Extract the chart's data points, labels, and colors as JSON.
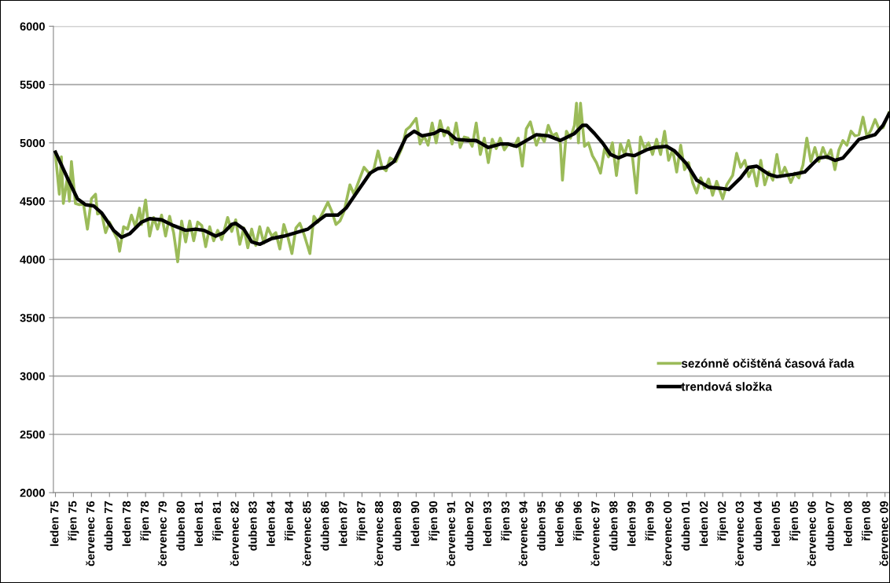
{
  "chart_data": {
    "type": "line",
    "xlim": [
      "1974-12-01",
      "2009-09-15"
    ],
    "xticks": [
      {
        "value": "1975-01",
        "label": "leden 75"
      },
      {
        "value": "1975-10",
        "label": "říjen 75"
      },
      {
        "value": "1976-07",
        "label": "červenec 76"
      },
      {
        "value": "1977-04",
        "label": "duben 77"
      },
      {
        "value": "1978-01",
        "label": "leden 78"
      },
      {
        "value": "1978-10",
        "label": "říjen 78"
      },
      {
        "value": "1979-07",
        "label": "červenec 79"
      },
      {
        "value": "1980-04",
        "label": "duben 80"
      },
      {
        "value": "1981-01",
        "label": "leden 81"
      },
      {
        "value": "1981-10",
        "label": "říjen 81"
      },
      {
        "value": "1982-07",
        "label": "červenec 82"
      },
      {
        "value": "1983-04",
        "label": "duben 83"
      },
      {
        "value": "1984-01",
        "label": "leden 84"
      },
      {
        "value": "1984-10",
        "label": "říjen 84"
      },
      {
        "value": "1985-07",
        "label": "červenec 85"
      },
      {
        "value": "1986-04",
        "label": "duben 86"
      },
      {
        "value": "1987-01",
        "label": "leden 87"
      },
      {
        "value": "1987-10",
        "label": "říjen 87"
      },
      {
        "value": "1988-07",
        "label": "červenec 88"
      },
      {
        "value": "1989-04",
        "label": "duben 89"
      },
      {
        "value": "1990-01",
        "label": "leden 90"
      },
      {
        "value": "1990-10",
        "label": "říjen 90"
      },
      {
        "value": "1991-07",
        "label": "červenec 91"
      },
      {
        "value": "1992-04",
        "label": "duben 92"
      },
      {
        "value": "1993-01",
        "label": "leden 93"
      },
      {
        "value": "1993-10",
        "label": "říjen 93"
      },
      {
        "value": "1994-07",
        "label": "červenec 94"
      },
      {
        "value": "1995-04",
        "label": "duben 95"
      },
      {
        "value": "1996-01",
        "label": "leden 96"
      },
      {
        "value": "1996-10",
        "label": "říjen 96"
      },
      {
        "value": "1997-07",
        "label": "červenec 97"
      },
      {
        "value": "1998-04",
        "label": "duben 98"
      },
      {
        "value": "1999-01",
        "label": "leden 99"
      },
      {
        "value": "1999-10",
        "label": "říjen 99"
      },
      {
        "value": "2000-07",
        "label": "červenec 00"
      },
      {
        "value": "2001-04",
        "label": "duben 01"
      },
      {
        "value": "2002-01",
        "label": "leden 02"
      },
      {
        "value": "2002-10",
        "label": "říjen 02"
      },
      {
        "value": "2003-07",
        "label": "červenec 03"
      },
      {
        "value": "2004-04",
        "label": "duben 04"
      },
      {
        "value": "2005-01",
        "label": "leden 05"
      },
      {
        "value": "2005-10",
        "label": "říjen 05"
      },
      {
        "value": "2006-07",
        "label": "červenec 06"
      },
      {
        "value": "2007-04",
        "label": "duben 07"
      },
      {
        "value": "2008-01",
        "label": "leden 08"
      },
      {
        "value": "2008-10",
        "label": "říjen 08"
      },
      {
        "value": "2009-07",
        "label": "červenec 09"
      }
    ],
    "ylim": [
      2000,
      6000
    ],
    "yticks": [
      2000,
      2500,
      3000,
      3500,
      4000,
      4500,
      5000,
      5500,
      6000
    ],
    "grid": "y",
    "legend": "right",
    "marker": "none",
    "line_style": "solid",
    "series": [
      {
        "name": "sezónně očištěná časová řada",
        "color": "#9bbb59",
        "x": [
          "1975-01",
          "1975-03",
          "1975-04",
          "1975-05",
          "1975-07",
          "1975-08",
          "1975-09",
          "1975-11",
          "1976-01",
          "1976-03",
          "1976-05",
          "1976-07",
          "1976-09",
          "1976-10",
          "1976-12",
          "1977-02",
          "1977-04",
          "1977-06",
          "1977-08",
          "1977-09",
          "1977-11",
          "1978-01",
          "1978-03",
          "1978-05",
          "1978-07",
          "1978-08",
          "1978-10",
          "1978-12",
          "1979-02",
          "1979-04",
          "1979-06",
          "1979-08",
          "1979-10",
          "1979-12",
          "1980-02",
          "1980-04",
          "1980-06",
          "1980-08",
          "1980-10",
          "1980-12",
          "1981-02",
          "1981-04",
          "1981-06",
          "1981-08",
          "1981-10",
          "1981-12",
          "1982-03",
          "1982-05",
          "1982-07",
          "1982-09",
          "1982-11",
          "1983-01",
          "1983-03",
          "1983-05",
          "1983-07",
          "1983-09",
          "1983-11",
          "1984-01",
          "1984-03",
          "1984-05",
          "1984-07",
          "1984-09",
          "1984-11",
          "1985-01",
          "1985-03",
          "1985-05",
          "1985-08",
          "1985-10",
          "1985-12",
          "1986-03",
          "1986-05",
          "1986-07",
          "1986-09",
          "1986-11",
          "1987-01",
          "1987-04",
          "1987-06",
          "1987-09",
          "1987-11",
          "1988-02",
          "1988-04",
          "1988-06",
          "1988-08",
          "1988-10",
          "1988-12",
          "1989-03",
          "1989-06",
          "1989-08",
          "1989-10",
          "1990-01",
          "1990-03",
          "1990-05",
          "1990-07",
          "1990-09",
          "1990-11",
          "1991-01",
          "1991-03",
          "1991-05",
          "1991-07",
          "1991-09",
          "1991-11",
          "1992-01",
          "1992-03",
          "1992-05",
          "1992-07",
          "1992-09",
          "1992-11",
          "1993-01",
          "1993-03",
          "1993-05",
          "1993-07",
          "1993-09",
          "1993-11",
          "1994-02",
          "1994-04",
          "1994-06",
          "1994-08",
          "1994-10",
          "1995-01",
          "1995-03",
          "1995-05",
          "1995-07",
          "1995-09",
          "1995-11",
          "1996-01",
          "1996-02",
          "1996-04",
          "1996-06",
          "1996-08",
          "1996-09",
          "1996-10",
          "1996-11",
          "1997-01",
          "1997-03",
          "1997-05",
          "1997-07",
          "1997-09",
          "1997-11",
          "1998-01",
          "1998-03",
          "1998-05",
          "1998-07",
          "1998-09",
          "1998-11",
          "1999-01",
          "1999-03",
          "1999-05",
          "1999-07",
          "1999-09",
          "1999-11",
          "2000-01",
          "2000-03",
          "2000-05",
          "2000-07",
          "2000-09",
          "2000-11",
          "2001-01",
          "2001-03",
          "2001-05",
          "2001-07",
          "2001-09",
          "2001-11",
          "2002-01",
          "2002-03",
          "2002-05",
          "2002-07",
          "2002-09",
          "2002-10",
          "2002-12",
          "2003-03",
          "2003-05",
          "2003-07",
          "2003-09",
          "2003-11",
          "2004-01",
          "2004-03",
          "2004-05",
          "2004-07",
          "2004-09",
          "2004-11",
          "2005-01",
          "2005-03",
          "2005-05",
          "2005-08",
          "2005-10",
          "2005-12",
          "2006-02",
          "2006-04",
          "2006-06",
          "2006-08",
          "2006-10",
          "2006-12",
          "2007-02",
          "2007-04",
          "2007-06",
          "2007-08",
          "2007-10",
          "2007-12",
          "2008-02",
          "2008-04",
          "2008-06",
          "2008-08",
          "2008-10",
          "2008-12",
          "2009-02",
          "2009-04",
          "2009-06",
          "2009-09"
        ],
        "values": [
          4900,
          4560,
          4880,
          4480,
          4700,
          4500,
          4840,
          4480,
          4470,
          4480,
          4260,
          4520,
          4560,
          4390,
          4400,
          4230,
          4320,
          4240,
          4170,
          4070,
          4280,
          4260,
          4380,
          4280,
          4440,
          4300,
          4510,
          4200,
          4360,
          4260,
          4380,
          4200,
          4370,
          4230,
          3980,
          4330,
          4150,
          4330,
          4160,
          4320,
          4290,
          4110,
          4280,
          4160,
          4250,
          4170,
          4360,
          4240,
          4340,
          4130,
          4270,
          4100,
          4260,
          4120,
          4280,
          4140,
          4270,
          4200,
          4230,
          4090,
          4300,
          4190,
          4050,
          4270,
          4310,
          4220,
          4050,
          4370,
          4320,
          4420,
          4490,
          4410,
          4300,
          4330,
          4410,
          4640,
          4560,
          4700,
          4790,
          4730,
          4780,
          4930,
          4790,
          4760,
          4870,
          4840,
          4960,
          5110,
          5140,
          5210,
          4990,
          5060,
          4980,
          5170,
          5000,
          5190,
          5060,
          5130,
          4990,
          5170,
          4960,
          5050,
          5040,
          4970,
          5170,
          4900,
          5040,
          4830,
          5030,
          4950,
          5040,
          4940,
          4990,
          4970,
          5040,
          4800,
          5120,
          5180,
          4980,
          5070,
          5010,
          5150,
          5060,
          5080,
          4990,
          4680,
          5100,
          5040,
          5150,
          5340,
          5000,
          5340,
          4970,
          5000,
          4890,
          4830,
          4740,
          4950,
          4880,
          5000,
          4720,
          4990,
          4900,
          5020,
          4870,
          4570,
          5050,
          4950,
          5000,
          4900,
          5030,
          4900,
          5100,
          4850,
          4940,
          4750,
          4980,
          4770,
          4830,
          4660,
          4570,
          4700,
          4610,
          4690,
          4550,
          4670,
          4570,
          4520,
          4640,
          4720,
          4910,
          4790,
          4850,
          4710,
          4790,
          4630,
          4850,
          4640,
          4750,
          4680,
          4900,
          4710,
          4790,
          4660,
          4740,
          4700,
          4810,
          5040,
          4840,
          4960,
          4840,
          4960,
          4870,
          4940,
          4770,
          4940,
          5020,
          4980,
          5100,
          5060,
          5070,
          5220,
          5050,
          5110,
          5200,
          5120,
          5130,
          5260
        ]
      },
      {
        "name": "trendová složka",
        "color": "#000000",
        "x": [
          "1975-01",
          "1975-07",
          "1975-12",
          "1976-04",
          "1976-08",
          "1976-12",
          "1977-06",
          "1977-10",
          "1978-02",
          "1978-08",
          "1978-12",
          "1979-06",
          "1979-12",
          "1980-06",
          "1980-11",
          "1981-03",
          "1981-09",
          "1982-01",
          "1982-05",
          "1982-07",
          "1982-11",
          "1983-03",
          "1983-07",
          "1984-01",
          "1984-07",
          "1985-01",
          "1985-07",
          "1985-12",
          "1986-04",
          "1986-10",
          "1987-02",
          "1987-08",
          "1988-02",
          "1988-06",
          "1988-10",
          "1989-02",
          "1989-08",
          "1989-12",
          "1990-04",
          "1990-10",
          "1991-01",
          "1991-05",
          "1991-09",
          "1992-03",
          "1992-07",
          "1993-01",
          "1993-07",
          "1993-11",
          "1994-03",
          "1994-07",
          "1995-01",
          "1995-07",
          "1996-01",
          "1996-08",
          "1996-12",
          "1997-02",
          "1997-06",
          "1997-10",
          "1998-02",
          "1998-06",
          "1998-10",
          "1999-02",
          "1999-08",
          "1999-12",
          "2000-06",
          "2000-10",
          "2001-04",
          "2001-09",
          "2002-03",
          "2002-09",
          "2003-01",
          "2003-07",
          "2003-11",
          "2004-03",
          "2004-09",
          "2005-01",
          "2005-05",
          "2005-09",
          "2006-03",
          "2006-07",
          "2006-10",
          "2007-02",
          "2007-06",
          "2007-10",
          "2008-02",
          "2008-06",
          "2008-10",
          "2009-02",
          "2009-06",
          "2009-09"
        ],
        "values": [
          4920,
          4700,
          4520,
          4470,
          4460,
          4400,
          4250,
          4190,
          4220,
          4320,
          4350,
          4340,
          4290,
          4250,
          4260,
          4250,
          4200,
          4230,
          4300,
          4310,
          4260,
          4150,
          4130,
          4180,
          4200,
          4230,
          4260,
          4330,
          4380,
          4380,
          4440,
          4590,
          4740,
          4780,
          4790,
          4840,
          5050,
          5100,
          5060,
          5080,
          5110,
          5090,
          5030,
          5020,
          5020,
          4960,
          4990,
          4990,
          4970,
          5010,
          5070,
          5060,
          5020,
          5080,
          5150,
          5150,
          5080,
          5000,
          4900,
          4870,
          4900,
          4890,
          4940,
          4960,
          4970,
          4930,
          4820,
          4680,
          4620,
          4610,
          4600,
          4700,
          4790,
          4800,
          4730,
          4710,
          4720,
          4730,
          4750,
          4820,
          4870,
          4880,
          4850,
          4870,
          4950,
          5030,
          5050,
          5070,
          5150,
          5250
        ]
      }
    ]
  }
}
